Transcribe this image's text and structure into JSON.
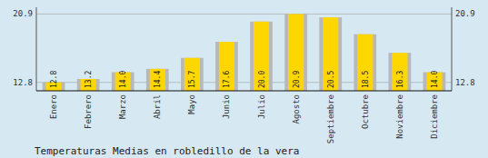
{
  "chart_data": {
    "type": "bar",
    "title": "Temperaturas Medias en robledillo de la vera",
    "categories": [
      "Enero",
      "Febrero",
      "Marzo",
      "Abril",
      "Mayo",
      "Junio",
      "Julio",
      "Agosto",
      "Septiembre",
      "Octubre",
      "Noviembre",
      "Diciembre"
    ],
    "values": [
      12.8,
      13.2,
      14.0,
      14.4,
      15.7,
      17.6,
      20.0,
      20.9,
      20.5,
      18.5,
      16.3,
      14.0
    ],
    "value_labels": [
      "12.8",
      "13.2",
      "14.0",
      "14.4",
      "15.7",
      "17.6",
      "20.0",
      "20.9",
      "20.5",
      "18.5",
      "16.3",
      "14.0"
    ],
    "color": "#FFD700",
    "ylim": [
      11.8,
      21.7
    ],
    "yticks": [
      12.8,
      20.9
    ],
    "grid": true,
    "data_labels": true
  }
}
